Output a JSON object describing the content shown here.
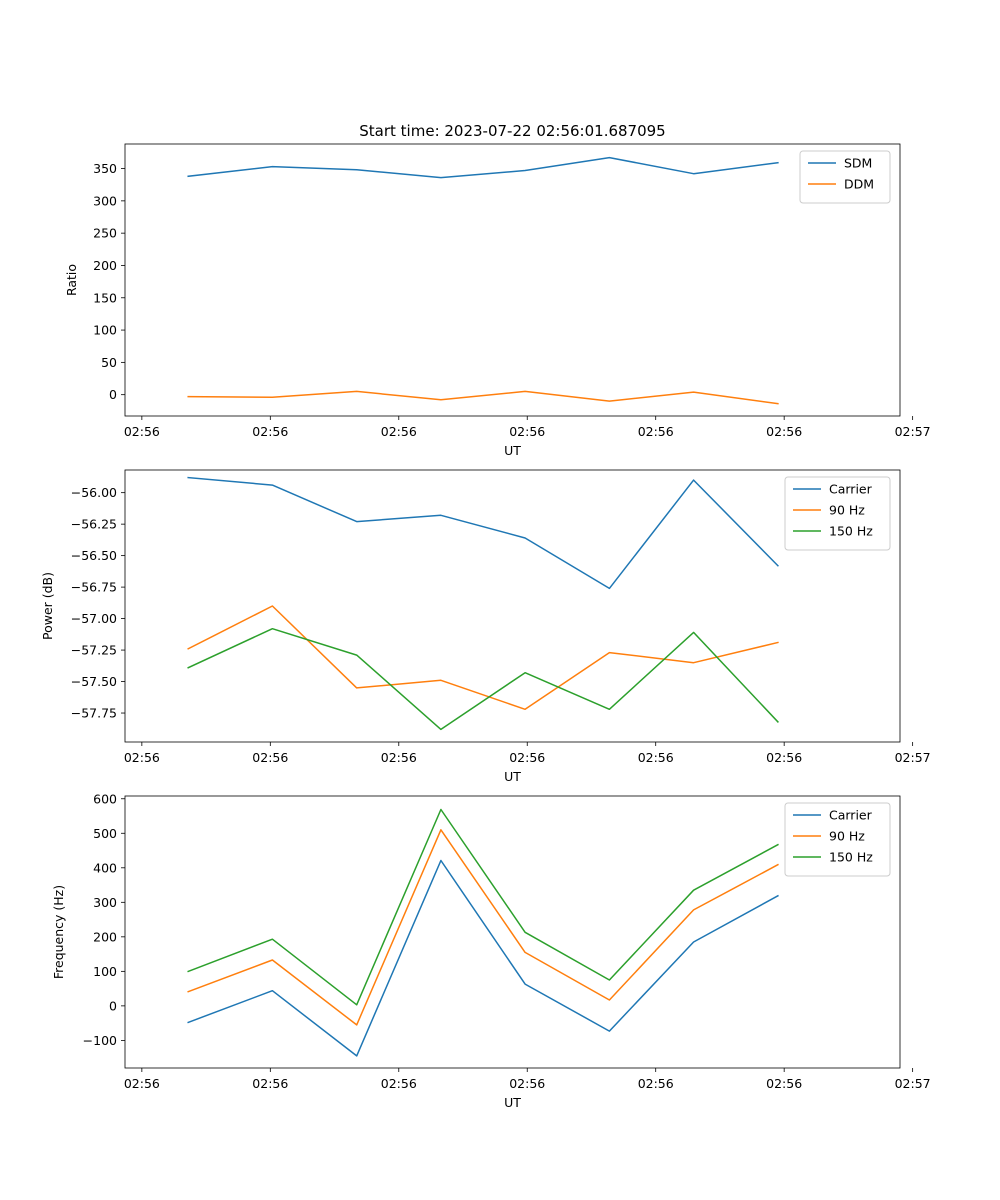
{
  "chart_data": [
    {
      "type": "line",
      "title": "Start time: 2023-07-22 02:56:01.687095",
      "xlabel": "UT",
      "ylabel": "Ratio",
      "grid": false,
      "legend_position": "top-right",
      "xlim": [
        0,
        9.2
      ],
      "ylim": [
        -33,
        388
      ],
      "x": [
        0.75,
        1.75,
        2.75,
        3.75,
        4.75,
        5.75,
        6.75,
        7.75
      ],
      "xticks": [
        0.2,
        1.725,
        3.25,
        4.775,
        6.3,
        7.825,
        9.35
      ],
      "xtick_labels": [
        "02:56",
        "02:56",
        "02:56",
        "02:56",
        "02:56",
        "02:56",
        "02:57"
      ],
      "yticks": [
        0,
        50,
        100,
        150,
        200,
        250,
        300,
        350
      ],
      "ytick_labels": [
        "0",
        "50",
        "100",
        "150",
        "200",
        "250",
        "300",
        "350"
      ],
      "series": [
        {
          "name": "SDM",
          "color": "#1f77b4",
          "values": [
            338,
            353,
            348,
            336,
            347,
            367,
            342,
            359
          ]
        },
        {
          "name": "DDM",
          "color": "#ff7f0e",
          "values": [
            -3,
            -4,
            5,
            -8,
            5,
            -10,
            4,
            -14
          ]
        }
      ]
    },
    {
      "type": "line",
      "title": "",
      "xlabel": "UT",
      "ylabel": "Power (dB)",
      "grid": false,
      "legend_position": "top-right",
      "xlim": [
        0,
        9.2
      ],
      "ylim": [
        -57.98,
        -55.82
      ],
      "x": [
        0.75,
        1.75,
        2.75,
        3.75,
        4.75,
        5.75,
        6.75,
        7.75
      ],
      "xticks": [
        0.2,
        1.725,
        3.25,
        4.775,
        6.3,
        7.825,
        9.35
      ],
      "xtick_labels": [
        "02:56",
        "02:56",
        "02:56",
        "02:56",
        "02:56",
        "02:56",
        "02:57"
      ],
      "yticks": [
        -56.0,
        -56.25,
        -56.5,
        -56.75,
        -57.0,
        -57.25,
        -57.5,
        -57.75
      ],
      "ytick_labels": [
        "−56.00",
        "−56.25",
        "−56.50",
        "−56.75",
        "−57.00",
        "−57.25",
        "−57.50",
        "−57.75"
      ],
      "series": [
        {
          "name": "Carrier",
          "color": "#1f77b4",
          "values": [
            -55.88,
            -55.94,
            -56.23,
            -56.18,
            -56.36,
            -56.76,
            -55.9,
            -56.58
          ]
        },
        {
          "name": "90 Hz",
          "color": "#ff7f0e",
          "values": [
            -57.24,
            -56.9,
            -57.55,
            -57.49,
            -57.72,
            -57.27,
            -57.35,
            -57.19
          ]
        },
        {
          "name": "150 Hz",
          "color": "#2ca02c",
          "values": [
            -57.39,
            -57.08,
            -57.29,
            -57.88,
            -57.43,
            -57.72,
            -57.11,
            -57.82
          ]
        }
      ]
    },
    {
      "type": "line",
      "title": "",
      "xlabel": "UT",
      "ylabel": "Frequency (Hz)",
      "grid": false,
      "legend_position": "top-right",
      "xlim": [
        0,
        9.2
      ],
      "ylim": [
        -180,
        608
      ],
      "x": [
        0.75,
        1.75,
        2.75,
        3.75,
        4.75,
        5.75,
        6.75,
        7.75
      ],
      "xticks": [
        0.2,
        1.725,
        3.25,
        4.775,
        6.3,
        7.825,
        9.35
      ],
      "xtick_labels": [
        "02:56",
        "02:56",
        "02:56",
        "02:56",
        "02:56",
        "02:56",
        "02:57"
      ],
      "yticks": [
        -100,
        0,
        100,
        200,
        300,
        400,
        500,
        600
      ],
      "ytick_labels": [
        "−100",
        "0",
        "100",
        "200",
        "300",
        "400",
        "500",
        "600"
      ],
      "series": [
        {
          "name": "Carrier",
          "color": "#1f77b4",
          "values": [
            -48,
            44,
            -145,
            421,
            63,
            -73,
            185,
            319
          ]
        },
        {
          "name": "90 Hz",
          "color": "#ff7f0e",
          "values": [
            41,
            133,
            -55,
            510,
            155,
            17,
            278,
            409
          ]
        },
        {
          "name": "150 Hz",
          "color": "#2ca02c",
          "values": [
            100,
            193,
            3,
            569,
            213,
            75,
            335,
            467
          ]
        }
      ]
    }
  ]
}
